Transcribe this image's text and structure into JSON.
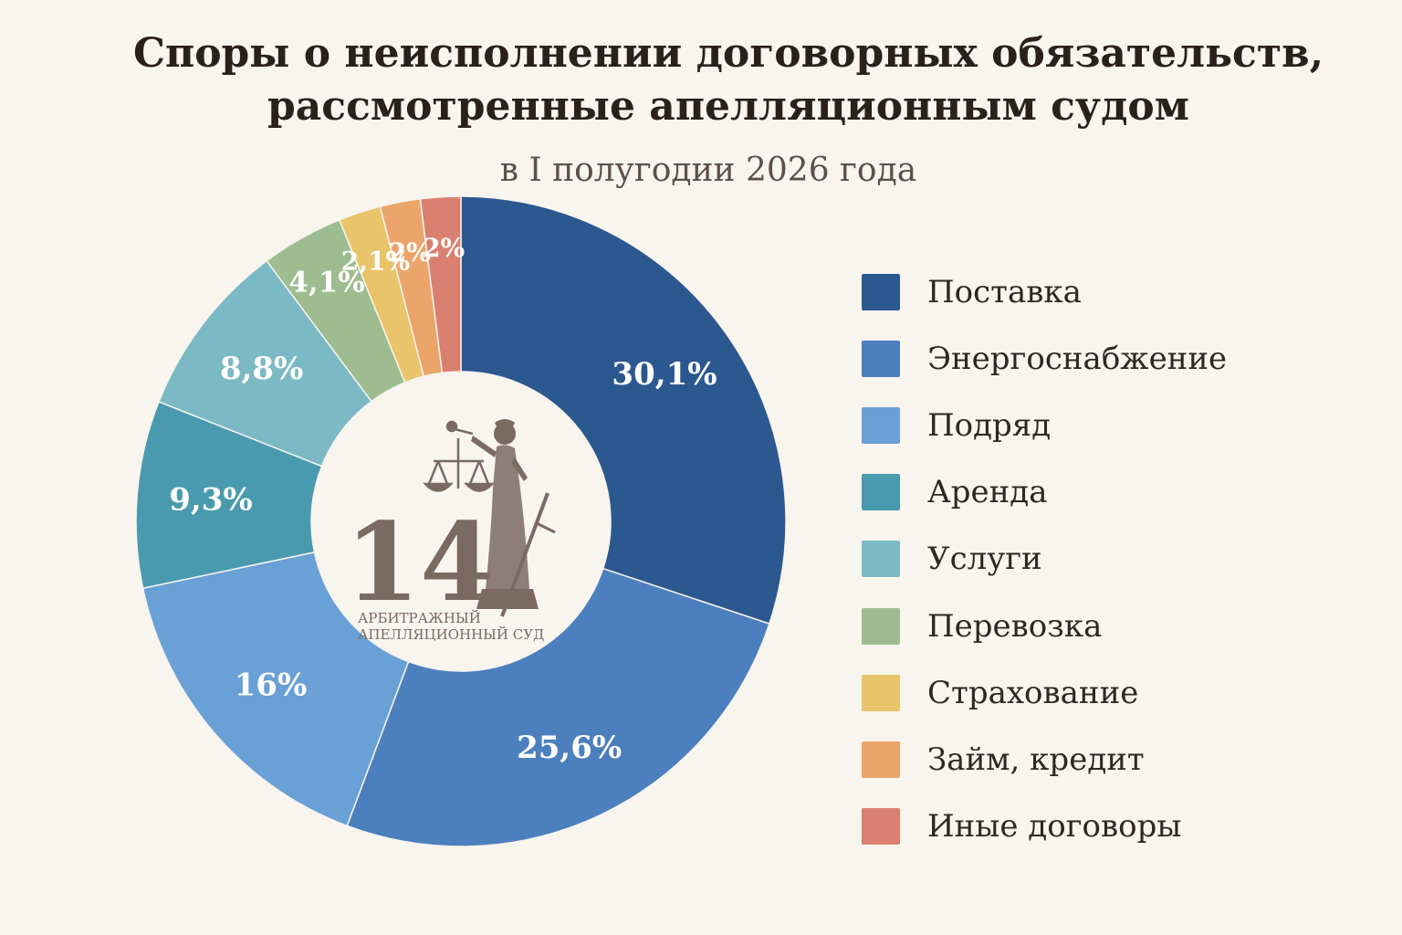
{
  "chart_data": {
    "type": "pie",
    "title": "Споры о неисполнении договорных обязательств, рассмотренные апелляционным судом",
    "title_lines": [
      "Споры о неисполнении договорных обязательств,",
      "рассмотренные апелляционным судом"
    ],
    "subtitle": "в I полугодии 2026 года",
    "legend_position": "right",
    "slices": [
      {
        "category": "Поставка",
        "value": 30.1,
        "label": "30,1%",
        "color": "#2c5890"
      },
      {
        "category": "Энергоснабжение",
        "value": 25.6,
        "label": "25,6%",
        "color": "#4c7fbd"
      },
      {
        "category": "Подряд",
        "value": 16,
        "label": "16%",
        "color": "#69a0d5"
      },
      {
        "category": "Аренда",
        "value": 9.3,
        "label": "9,3%",
        "color": "#4a9aaf"
      },
      {
        "category": "Услуги",
        "value": 8.8,
        "label": "8,8%",
        "color": "#7bbac4"
      },
      {
        "category": "Перевозка",
        "value": 4.1,
        "label": "4,1%",
        "color": "#9dbc8f"
      },
      {
        "category": "Страхование",
        "value": 2.1,
        "label": "2,1%",
        "color": "#e9c46a"
      },
      {
        "category": "Займ, кредит",
        "value": 2,
        "label": "2%",
        "color": "#eba56a"
      },
      {
        "category": "Иные договоры",
        "value": 2,
        "label": "2%",
        "color": "#d98070"
      }
    ]
  },
  "emblem": {
    "number": "14",
    "line1": "АРБИТРАЖНЫЙ",
    "line2": "АПЕЛЛЯЦИОННЫЙ СУД",
    "color": "#7a6a62"
  }
}
